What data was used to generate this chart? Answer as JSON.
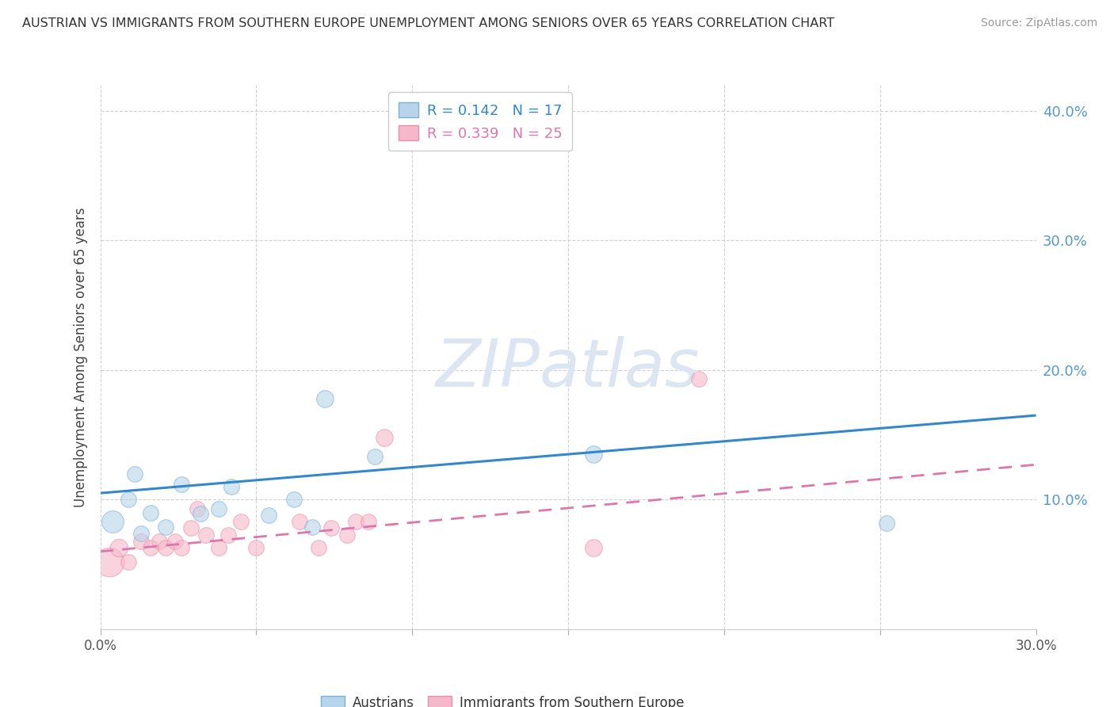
{
  "title": "AUSTRIAN VS IMMIGRANTS FROM SOUTHERN EUROPE UNEMPLOYMENT AMONG SENIORS OVER 65 YEARS CORRELATION CHART",
  "source": "Source: ZipAtlas.com",
  "ylabel": "Unemployment Among Seniors over 65 years",
  "xlim": [
    0.0,
    0.3
  ],
  "ylim": [
    0.0,
    0.42
  ],
  "x_ticks": [
    0.0,
    0.05,
    0.1,
    0.15,
    0.2,
    0.25,
    0.3
  ],
  "y_ticks": [
    0.0,
    0.1,
    0.2,
    0.3,
    0.4
  ],
  "legend_blue_r": "R = 0.142",
  "legend_blue_n": "N = 17",
  "legend_pink_r": "R = 0.339",
  "legend_pink_n": "N = 25",
  "austrian_fill": "#b8d4ea",
  "austrian_edge": "#7ab0d4",
  "immigrant_fill": "#f5b8cb",
  "immigrant_edge": "#e890ac",
  "blue_line_color": "#3388cc",
  "pink_line_color": "#dd77aa",
  "watermark_color": "#dce6f2",
  "austrians_x": [
    0.004,
    0.009,
    0.011,
    0.013,
    0.016,
    0.021,
    0.026,
    0.032,
    0.038,
    0.042,
    0.054,
    0.062,
    0.068,
    0.072,
    0.088,
    0.158,
    0.252
  ],
  "austrians_y": [
    0.083,
    0.1,
    0.12,
    0.074,
    0.09,
    0.079,
    0.112,
    0.089,
    0.093,
    0.11,
    0.088,
    0.1,
    0.079,
    0.178,
    0.133,
    0.135,
    0.082
  ],
  "austrians_size": [
    200,
    100,
    100,
    100,
    100,
    100,
    100,
    100,
    100,
    100,
    100,
    100,
    100,
    120,
    100,
    120,
    100
  ],
  "immigrants_x": [
    0.003,
    0.006,
    0.009,
    0.013,
    0.016,
    0.019,
    0.021,
    0.024,
    0.026,
    0.029,
    0.031,
    0.034,
    0.038,
    0.041,
    0.045,
    0.05,
    0.064,
    0.07,
    0.074,
    0.079,
    0.082,
    0.086,
    0.091,
    0.158,
    0.192
  ],
  "immigrants_y": [
    0.052,
    0.063,
    0.052,
    0.068,
    0.063,
    0.068,
    0.063,
    0.068,
    0.063,
    0.078,
    0.093,
    0.073,
    0.063,
    0.073,
    0.083,
    0.063,
    0.083,
    0.063,
    0.078,
    0.073,
    0.083,
    0.083,
    0.148,
    0.063,
    0.193
  ],
  "immigrants_size": [
    350,
    130,
    100,
    100,
    100,
    100,
    100,
    100,
    100,
    100,
    100,
    100,
    100,
    100,
    100,
    100,
    100,
    100,
    100,
    100,
    100,
    100,
    120,
    120,
    100
  ],
  "blue_line_x": [
    0.0,
    0.3
  ],
  "blue_line_y": [
    0.105,
    0.165
  ],
  "pink_line_x": [
    0.0,
    0.3
  ],
  "pink_line_y": [
    0.06,
    0.127
  ]
}
